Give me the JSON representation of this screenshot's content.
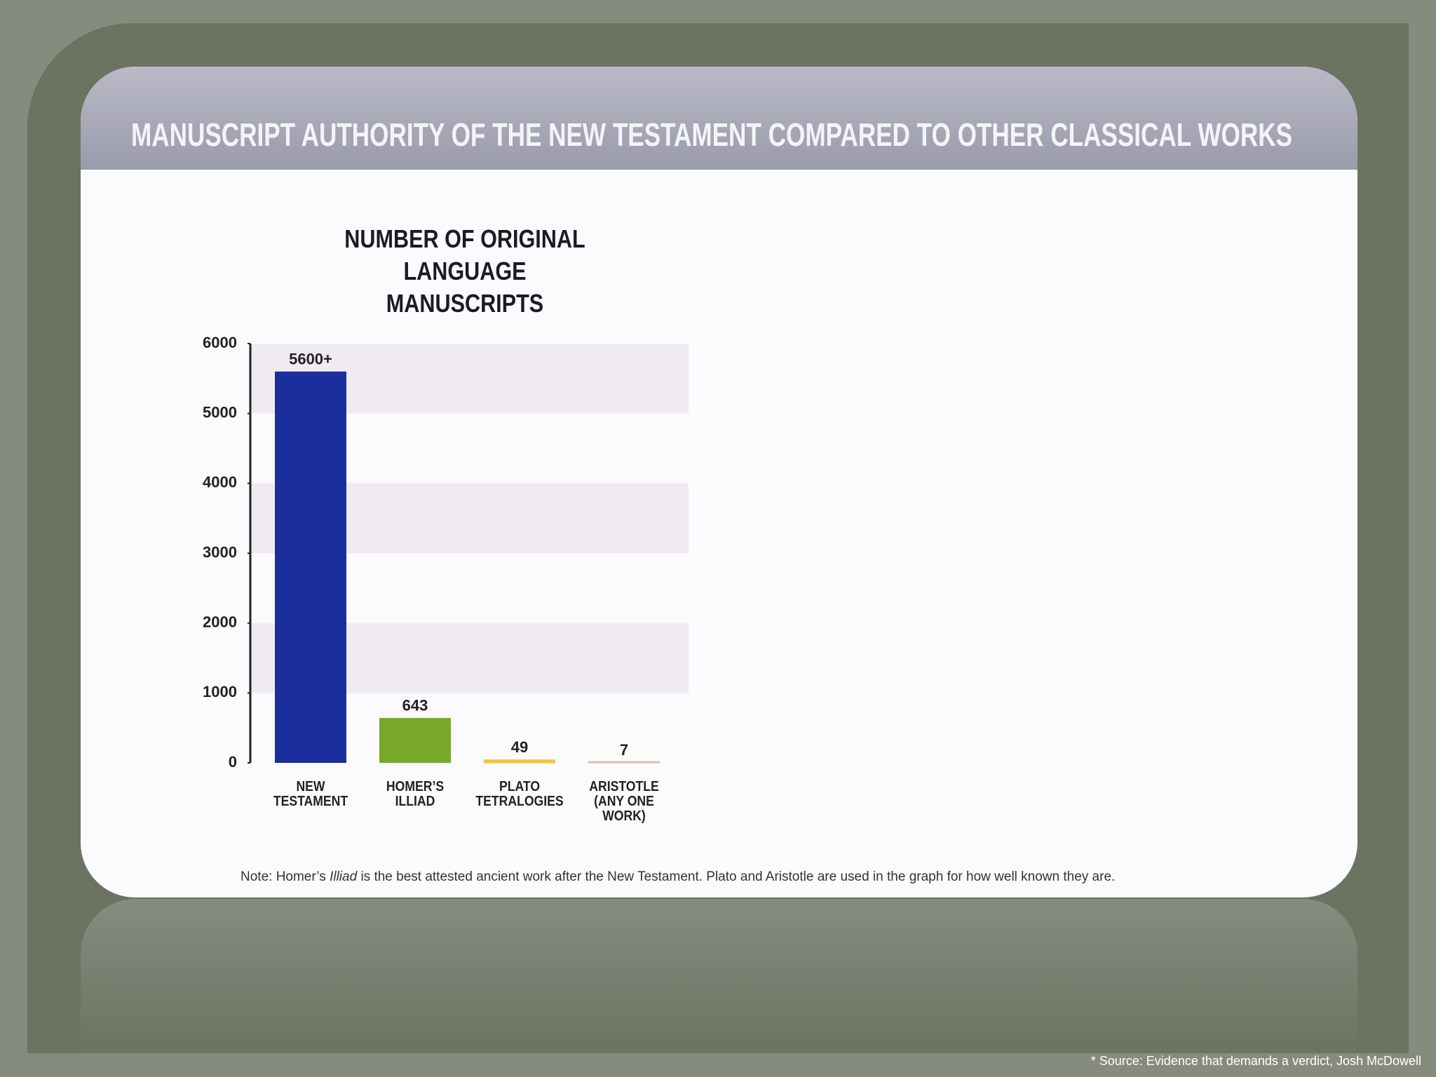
{
  "header": {
    "title": "MANUSCRIPT AUTHORITY OF THE NEW TESTAMENT COMPARED TO OTHER CLASSICAL WORKS"
  },
  "chart_data": {
    "type": "bar",
    "title": "NUMBER OF ORIGINAL LANGUAGE MANUSCRIPTS",
    "categories": [
      "NEW TESTAMENT",
      "HOMER’S ILLIAD",
      "PLATO TETRALOGIES",
      "ARISTOTLE (ANY ONE WORK)"
    ],
    "values": [
      5600,
      643,
      49,
      7
    ],
    "value_labels": [
      "5600+",
      "643",
      "49",
      "7"
    ],
    "colors": [
      "#1b2e9e",
      "#78a82a",
      "#f3c444",
      "#e9b9a3"
    ],
    "ylim": [
      0,
      6000
    ],
    "yticks": [
      0,
      1000,
      2000,
      3000,
      4000,
      5000,
      6000
    ]
  },
  "note": [
    "Note: Homer’s",
    "Illiad",
    "is the best attested ancient work after the New Testament.  Plato and Aristotle are used in the graph for how well known they are."
  ],
  "source": "* Source: Evidence that demands a verdict, Josh McDowell"
}
